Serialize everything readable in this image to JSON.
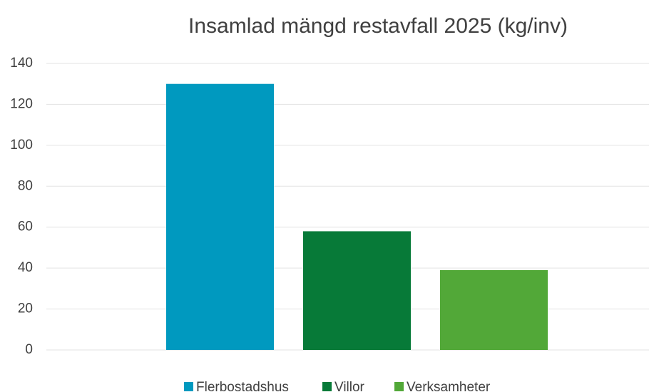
{
  "chart_data": {
    "type": "bar",
    "title": "Insamlad mängd restavfall 2025 (kg/inv)",
    "categories": [
      null
    ],
    "series": [
      {
        "name": "Flerbostadshus",
        "color": "#0099bf",
        "values": [
          130
        ]
      },
      {
        "name": "Villor",
        "color": "#077a38",
        "values": [
          58
        ]
      },
      {
        "name": "Verksamheter",
        "color": "#52a838",
        "values": [
          39
        ]
      }
    ],
    "ylim": [
      0,
      140
    ],
    "yticks": [
      0,
      20,
      40,
      60,
      80,
      100,
      120,
      140
    ],
    "grid": true,
    "legend": "bottom"
  }
}
